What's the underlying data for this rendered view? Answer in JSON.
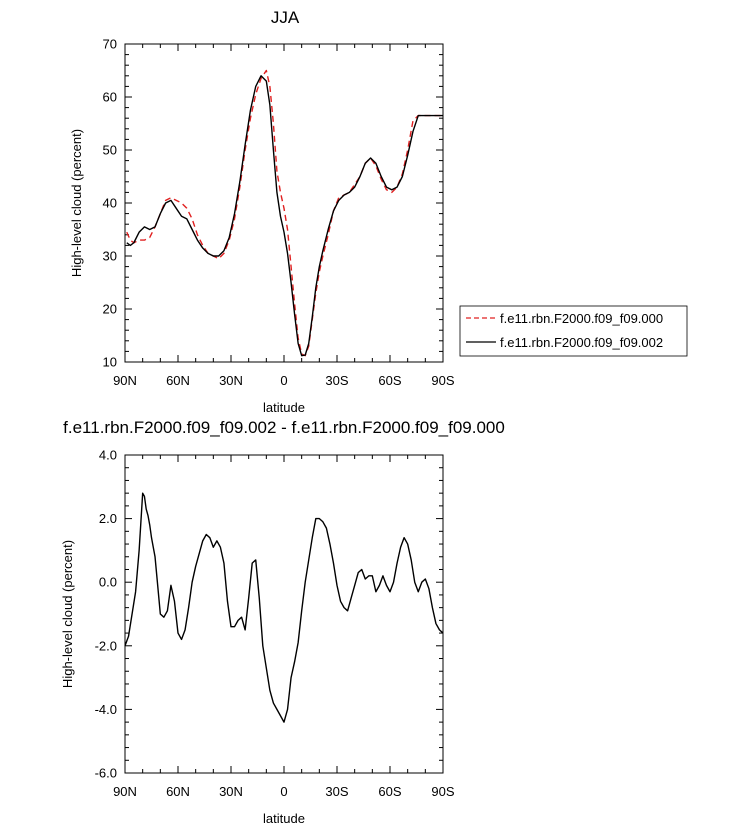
{
  "chart_data": [
    {
      "type": "line",
      "title": "JJA",
      "xlabel": "latitude",
      "ylabel": "High-level cloud (percent)",
      "xlim": [
        90,
        -90
      ],
      "ylim": [
        10,
        70
      ],
      "x_ticks": [
        90,
        60,
        30,
        0,
        -30,
        -60,
        -90
      ],
      "x_tick_labels": [
        "90N",
        "60N",
        "30N",
        "0",
        "30S",
        "60S",
        "90S"
      ],
      "y_ticks": [
        10,
        20,
        30,
        40,
        50,
        60,
        70
      ],
      "y_tick_labels": [
        "10",
        "20",
        "30",
        "40",
        "50",
        "60",
        "70"
      ],
      "legend_position": "right",
      "series": [
        {
          "name": "f.e11.rbn.F2000.f09_f09.000",
          "color": "#e02020",
          "style": "dashed",
          "x": [
            89,
            87,
            85,
            82,
            79,
            76,
            73,
            70,
            67,
            64,
            61,
            58,
            55,
            52,
            49,
            46,
            43,
            40,
            37,
            34,
            31,
            28,
            25,
            22,
            19,
            16,
            13,
            10,
            8,
            6,
            4,
            2,
            0,
            -2,
            -4,
            -6,
            -8,
            -10,
            -12,
            -14,
            -16,
            -18,
            -20,
            -22,
            -25,
            -28,
            -31,
            -34,
            -37,
            -40,
            -43,
            -46,
            -49,
            -52,
            -55,
            -58,
            -61,
            -64,
            -67,
            -70,
            -73,
            -76,
            -79,
            -82,
            -85,
            -88,
            -90
          ],
          "y": [
            34.5,
            33,
            32.5,
            33,
            33,
            33.5,
            35.5,
            38,
            40.5,
            41,
            40.5,
            40,
            39,
            37,
            34,
            32,
            30.5,
            30,
            29.5,
            30.5,
            33,
            37,
            43,
            50,
            56,
            60.5,
            63.5,
            65,
            62,
            55,
            46,
            42,
            39,
            35,
            28,
            21,
            14.5,
            11.5,
            11.2,
            13,
            18,
            23,
            27,
            30,
            34,
            38.5,
            41,
            41.5,
            42,
            43.5,
            45,
            47.5,
            48.5,
            47,
            44.5,
            42.5,
            42,
            43,
            45.5,
            50,
            55.5,
            56.5,
            56.5,
            56.5,
            56.5,
            56.5,
            56.5
          ]
        },
        {
          "name": "f.e11.rbn.F2000.f09_f09.002",
          "color": "#000000",
          "style": "solid",
          "x": [
            89,
            87,
            85,
            82,
            79,
            76,
            73,
            70,
            67,
            64,
            61,
            58,
            55,
            52,
            49,
            46,
            43,
            40,
            37,
            34,
            31,
            28,
            25,
            22,
            19,
            16,
            13,
            10,
            8,
            6,
            4,
            2,
            0,
            -2,
            -4,
            -6,
            -8,
            -10,
            -12,
            -14,
            -16,
            -18,
            -20,
            -22,
            -25,
            -28,
            -31,
            -34,
            -37,
            -40,
            -43,
            -46,
            -49,
            -52,
            -55,
            -58,
            -61,
            -64,
            -67,
            -70,
            -73,
            -76,
            -79,
            -82,
            -85,
            -88,
            -90
          ],
          "y": [
            32.5,
            32,
            32.5,
            34.5,
            35.5,
            35,
            35.5,
            38,
            40,
            40.5,
            39,
            37.5,
            37,
            35,
            33,
            31.5,
            30.5,
            30,
            30,
            31,
            33.5,
            38,
            44,
            51,
            57.5,
            62,
            64,
            63,
            58.5,
            50,
            42,
            37.5,
            34.5,
            30.5,
            25,
            19,
            13.5,
            11.2,
            11.3,
            13.5,
            18.5,
            24,
            28,
            31,
            35,
            38.5,
            40.5,
            41.5,
            42,
            43,
            45,
            47.5,
            48.5,
            47.5,
            45,
            43,
            42.5,
            43,
            45,
            49,
            53.5,
            56.5,
            56.5,
            56.5,
            56.5,
            56.5,
            56.5
          ]
        }
      ]
    },
    {
      "type": "line",
      "title": "f.e11.rbn.F2000.f09_f09.002 - f.e11.rbn.F2000.f09_f09.000",
      "xlabel": "latitude",
      "ylabel": "High-level cloud (percent)",
      "xlim": [
        90,
        -90
      ],
      "ylim": [
        -6,
        4
      ],
      "x_ticks": [
        90,
        60,
        30,
        0,
        -30,
        -60,
        -90
      ],
      "x_tick_labels": [
        "90N",
        "60N",
        "30N",
        "0",
        "30S",
        "60S",
        "90S"
      ],
      "y_ticks": [
        -6,
        -4,
        -2,
        0,
        2,
        4
      ],
      "y_tick_labels": [
        "-6.0",
        "-4.0",
        "-2.0",
        "0.0",
        "2.0",
        "4.0"
      ],
      "series": [
        {
          "color": "#000000",
          "style": "solid",
          "x": [
            90,
            88,
            86,
            84,
            82,
            80,
            79,
            78,
            77,
            76,
            75,
            74,
            73,
            72,
            70,
            68,
            66,
            64,
            62,
            60,
            58,
            56,
            54,
            52,
            50,
            48,
            46,
            44,
            42,
            40,
            38,
            36,
            34,
            32,
            30,
            28,
            26,
            24,
            22,
            20,
            18,
            16,
            14,
            12,
            10,
            8,
            6,
            4,
            2,
            0,
            -2,
            -4,
            -6,
            -8,
            -10,
            -12,
            -14,
            -16,
            -18,
            -20,
            -22,
            -24,
            -26,
            -28,
            -30,
            -32,
            -34,
            -36,
            -38,
            -40,
            -42,
            -44,
            -46,
            -48,
            -50,
            -52,
            -54,
            -56,
            -58,
            -60,
            -62,
            -64,
            -66,
            -68,
            -70,
            -72,
            -74,
            -76,
            -78,
            -80,
            -82,
            -84,
            -86,
            -88,
            -90
          ],
          "y": [
            -2.0,
            -1.7,
            -1.0,
            -0.3,
            1.0,
            2.8,
            2.7,
            2.3,
            2.1,
            1.8,
            1.4,
            1.1,
            0.8,
            0.2,
            -1.0,
            -1.1,
            -0.9,
            -0.1,
            -0.6,
            -1.6,
            -1.8,
            -1.5,
            -0.8,
            0.0,
            0.5,
            0.9,
            1.3,
            1.5,
            1.4,
            1.1,
            1.3,
            1.1,
            0.6,
            -0.6,
            -1.4,
            -1.4,
            -1.2,
            -1.1,
            -1.5,
            -0.5,
            0.6,
            0.7,
            -0.5,
            -2.0,
            -2.7,
            -3.4,
            -3.8,
            -4.0,
            -4.2,
            -4.4,
            -4.0,
            -3.0,
            -2.5,
            -1.9,
            -0.9,
            0.0,
            0.7,
            1.4,
            2.0,
            2.0,
            1.9,
            1.7,
            1.2,
            0.6,
            -0.1,
            -0.6,
            -0.8,
            -0.9,
            -0.5,
            -0.1,
            0.3,
            0.4,
            0.1,
            0.2,
            0.2,
            -0.3,
            -0.1,
            0.2,
            -0.1,
            -0.3,
            0.0,
            0.6,
            1.1,
            1.4,
            1.2,
            0.7,
            0.0,
            -0.3,
            0.0,
            0.1,
            -0.2,
            -0.8,
            -1.3,
            -1.5,
            -1.6
          ]
        }
      ]
    }
  ]
}
